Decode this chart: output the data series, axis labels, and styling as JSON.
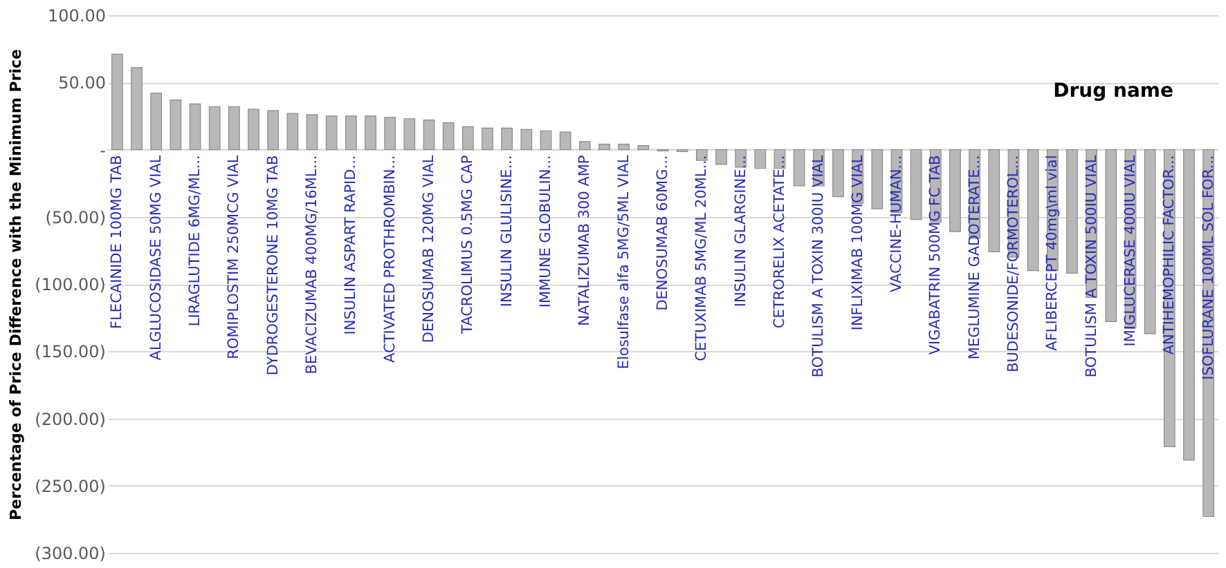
{
  "chart_data": {
    "type": "bar",
    "xlabel": "Drug name",
    "ylabel": "Percentage of Price Difference with the Minimum Price",
    "categories": [
      "FLECAINIDE 100MG TAB",
      null,
      "ALGLUCOSIDASE 50MG VIAL",
      null,
      "LIRAGLUTIDE 6MG/ML...",
      null,
      "ROMIPLOSTIM 250MCG VIAL",
      null,
      "DYDROGESTERONE 10MG TAB",
      null,
      "BEVACIZUMAB 400MG/16ML...",
      null,
      "INSULIN ASPART RAPID...",
      null,
      "ACTIVATED PROTHROMBIN...",
      null,
      "DENOSUMAB 120MG VIAL",
      null,
      "TACROLIMUS 0.5MG CAP",
      null,
      "INSULIN GLULISINE...",
      null,
      "IMMUNE GLOBULIN...",
      null,
      "NATALIZUMAB 300 AMP",
      null,
      "Elosulfase alfa 5MG/5ML VIAL",
      null,
      "DENOSUMAB 60MG...",
      null,
      "CETUXIMAB 5MG/ML 20ML...",
      null,
      "INSULIN GLARGINE...",
      null,
      "CETRORELIX ACETATE...",
      null,
      "BOTULISM A TOXIN 300IU VIAL",
      null,
      "INFLIXIMAB 100MG VIAL",
      null,
      "VACCINE-HUMAN...",
      null,
      "VIGABATRIN 500MG FC TAB",
      null,
      "MEGLUMINE GADOTERATE...",
      null,
      "BUDESONIDE/FORMOTEROL...",
      null,
      "AFLIBERCEPT 40mg\\ml vial",
      null,
      "BOTULISM A TOXIN 500IU VIAL",
      null,
      "IMIGLUCERASE 400IU VIAL",
      null,
      "ANTIHEMOPHILIC FACTOR...",
      null,
      "ISOFLURANE 100ML SOL FOR..."
    ],
    "values": [
      71,
      61,
      42,
      37,
      34,
      32,
      32,
      30,
      29,
      27,
      26,
      25,
      25,
      25,
      24,
      23,
      22,
      20,
      17,
      16,
      16,
      15,
      14,
      13,
      6,
      4,
      4,
      3,
      -1,
      -1.5,
      -8,
      -11,
      -13,
      -14,
      -14,
      -27,
      -27,
      -35,
      -40,
      -44,
      -47,
      -52,
      -54,
      -61,
      -66,
      -76,
      -80,
      -90,
      -90,
      -92,
      -110,
      -128,
      -133,
      -137,
      -221,
      -231,
      -273
    ],
    "color": "#b8b8b8",
    "ylim": [
      -300,
      100
    ],
    "yticks": [
      {
        "value": 100,
        "label": "100.00"
      },
      {
        "value": 50,
        "label": "50.00"
      },
      {
        "value": 0,
        "label": "-"
      },
      {
        "value": -50,
        "label": "(50.00)"
      },
      {
        "value": -100,
        "label": "(100.00)"
      },
      {
        "value": -150,
        "label": "(150.00)"
      },
      {
        "value": -200,
        "label": "(200.00)"
      },
      {
        "value": -250,
        "label": "(250.00)"
      },
      {
        "value": -300,
        "label": "(300.00)"
      }
    ],
    "grid": "y"
  }
}
